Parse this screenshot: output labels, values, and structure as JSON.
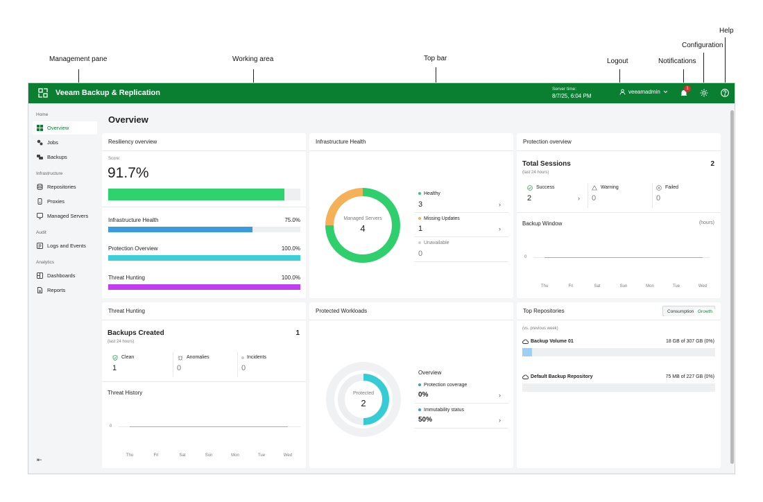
{
  "callouts": {
    "management_pane": "Management pane",
    "working_area": "Working area",
    "top_bar": "Top bar",
    "logout": "Logout",
    "notifications": "Notifications",
    "configuration": "Configuration",
    "help": "Help"
  },
  "topbar": {
    "title": "Veeam Backup & Replication",
    "server_time_label": "Server time:",
    "server_time_value": "8/7/25, 6:04 PM",
    "user": "veeamadmin",
    "notification_count": "1",
    "color": "#0a7f32"
  },
  "sidebar": {
    "sections": {
      "home": "Home",
      "infrastructure": "Infrastructure",
      "audit": "Audit",
      "analytics": "Analytics"
    },
    "items": [
      {
        "label": "Overview",
        "icon": "grid-icon",
        "active": true
      },
      {
        "label": "Jobs",
        "icon": "jobs-icon"
      },
      {
        "label": "Backups",
        "icon": "backups-icon"
      },
      {
        "label": "Repositories",
        "icon": "database-icon"
      },
      {
        "label": "Proxies",
        "icon": "proxy-icon"
      },
      {
        "label": "Managed Servers",
        "icon": "server-icon"
      },
      {
        "label": "Logs and Events",
        "icon": "logs-icon"
      },
      {
        "label": "Dashboards",
        "icon": "dashboard-icon"
      },
      {
        "label": "Reports",
        "icon": "report-icon"
      }
    ],
    "collapse_glyph": "⇤"
  },
  "page_title": "Overview",
  "resiliency": {
    "title": "Resiliency overview",
    "score_label": "Score:",
    "score": "91.7%",
    "score_fraction": 0.917,
    "rows": [
      {
        "label": "Infrastructure Health",
        "value": "75.0%",
        "fraction": 0.75,
        "color": "#3b9be0"
      },
      {
        "label": "Protection Overview",
        "value": "100.0%",
        "fraction": 1.0,
        "color": "#3ccfd8"
      },
      {
        "label": "Threat Hunting",
        "value": "100.0%",
        "fraction": 1.0,
        "color": "#c23cf0"
      }
    ]
  },
  "infra_health": {
    "title": "Infrastructure Health",
    "donut_label": "Managed Servers",
    "donut_value": "4",
    "items": [
      {
        "label": "Healthy",
        "value": "3",
        "count": 3,
        "color": "#2fcf6d"
      },
      {
        "label": "Missing Updates",
        "value": "1",
        "count": 1,
        "color": "#f5b157"
      },
      {
        "label": "Unavailable",
        "value": "0",
        "count": 0,
        "color": "#d0d3d6"
      }
    ]
  },
  "protection": {
    "title": "Protection overview",
    "sessions_label": "Total Sessions",
    "sessions_value": "2",
    "sessions_sub": "(last 24 hours)",
    "statuses": [
      {
        "label": "Success",
        "value": "2",
        "icon": "check-circle-icon"
      },
      {
        "label": "Warning",
        "value": "0",
        "icon": "warning-icon"
      },
      {
        "label": "Failed",
        "value": "0",
        "icon": "failed-icon"
      }
    ],
    "window_title": "Backup Window",
    "window_unit": "(hours)",
    "window_y0": "0",
    "window_days": [
      "Thu",
      "Fri",
      "Sat",
      "Sun",
      "Mon",
      "Tue",
      "Wed"
    ]
  },
  "threat": {
    "title": "Threat Hunting",
    "backups_label": "Backups Created",
    "backups_value": "1",
    "backups_sub": "(last 24 hours)",
    "statuses": [
      {
        "label": "Clean",
        "value": "1",
        "icon": "shield-check-icon"
      },
      {
        "label": "Anomalies",
        "value": "0",
        "icon": "bug-icon"
      },
      {
        "label": "Incidents",
        "value": "0",
        "icon": "dot-icon"
      }
    ],
    "history_title": "Threat History",
    "history_y0": "0",
    "history_days": [
      "Thu",
      "Fri",
      "Sat",
      "Sun",
      "Mon",
      "Tue",
      "Wed"
    ]
  },
  "workloads": {
    "title": "Protected Workloads",
    "donut_label": "Protected",
    "donut_value": "2",
    "overview_title": "Overview",
    "items": [
      {
        "label": "Protection coverage",
        "value": "0%"
      },
      {
        "label": "Immutability status",
        "value": "50%"
      }
    ]
  },
  "repos": {
    "title": "Top Repositories",
    "tab_consumption": "Consumption",
    "tab_growth": "Growth",
    "sub": "(vs. previous week)",
    "items": [
      {
        "name": "Backup Volume 01",
        "value": "18 GB of 307 GB (0%)",
        "fraction": 0.05
      },
      {
        "name": "Default Backup Repository",
        "value": "75 MB of 227 GB (0%)",
        "fraction": 0.0
      }
    ]
  }
}
